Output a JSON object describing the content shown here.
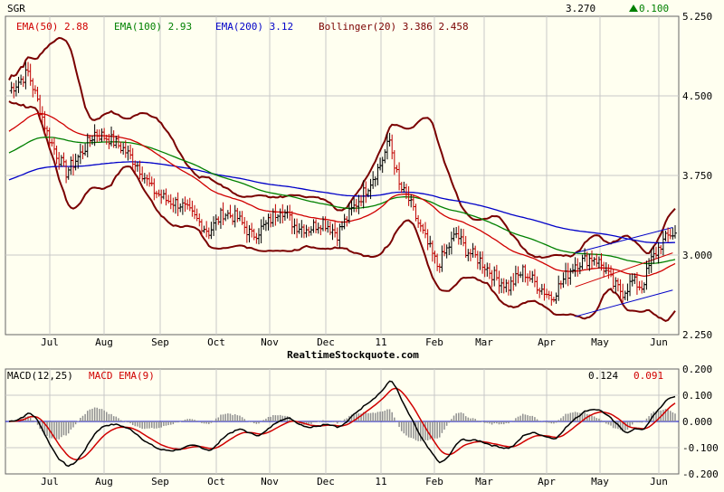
{
  "colors": {
    "background": "#fffff0",
    "panel": "#fffff0",
    "grid": "#c8c8c8",
    "ema50": "#d00000",
    "ema100": "#008000",
    "ema200": "#0000c8",
    "bollinger": "#7a0000",
    "up_bar": "#000000",
    "down_bar": "#c00000",
    "macd": "#000000",
    "signal": "#d00000",
    "hist": "#909090",
    "trend": "#0000c8",
    "change": "#008000"
  },
  "header": {
    "symbol": "SGR",
    "last_price": "3.270",
    "change": "0.100"
  },
  "legend": {
    "ema50": "EMA(50) 2.88",
    "ema100": "EMA(100) 2.93",
    "ema200": "EMA(200) 3.12",
    "bollinger": "Bollinger(20) 3.386 2.458"
  },
  "watermark": "RealtimeStockquote.com",
  "chart_data": [
    {
      "type": "ohlc",
      "title": "SGR",
      "months": [
        "Jul",
        "Aug",
        "Sep",
        "Oct",
        "Nov",
        "Dec",
        "11",
        "Feb",
        "Mar",
        "Apr",
        "May",
        "Jun"
      ],
      "y_ticks": [
        "5.250",
        "4.500",
        "3.750",
        "3.000",
        "2.250"
      ],
      "ylim": [
        2.25,
        5.25
      ],
      "series": [
        {
          "name": "EMA(50)",
          "last": 2.88
        },
        {
          "name": "EMA(100)",
          "last": 2.93
        },
        {
          "name": "EMA(200)",
          "last": 3.12
        },
        {
          "name": "Bollinger(20)",
          "upper": 3.386,
          "lower": 2.458
        }
      ],
      "price_path": [
        [
          0,
          4.55
        ],
        [
          8,
          4.72
        ],
        [
          12,
          4.45
        ],
        [
          16,
          4.15
        ],
        [
          20,
          3.95
        ],
        [
          24,
          3.78
        ],
        [
          30,
          3.95
        ],
        [
          36,
          4.15
        ],
        [
          42,
          4.1
        ],
        [
          48,
          4.0
        ],
        [
          54,
          3.85
        ],
        [
          60,
          3.62
        ],
        [
          66,
          3.52
        ],
        [
          72,
          3.48
        ],
        [
          78,
          3.35
        ],
        [
          84,
          3.22
        ],
        [
          90,
          3.4
        ],
        [
          96,
          3.35
        ],
        [
          102,
          3.18
        ],
        [
          108,
          3.28
        ],
        [
          114,
          3.45
        ],
        [
          120,
          3.28
        ],
        [
          126,
          3.25
        ],
        [
          132,
          3.32
        ],
        [
          138,
          3.2
        ],
        [
          144,
          3.42
        ],
        [
          150,
          3.62
        ],
        [
          156,
          3.85
        ],
        [
          160,
          4.08
        ],
        [
          164,
          3.65
        ],
        [
          168,
          3.52
        ],
        [
          172,
          3.3
        ],
        [
          176,
          3.1
        ],
        [
          180,
          2.9
        ],
        [
          184,
          3.05
        ],
        [
          188,
          3.2
        ],
        [
          192,
          3.05
        ],
        [
          198,
          2.95
        ],
        [
          204,
          2.8
        ],
        [
          210,
          2.7
        ],
        [
          216,
          2.85
        ],
        [
          222,
          2.72
        ],
        [
          228,
          2.6
        ],
        [
          234,
          2.8
        ],
        [
          238,
          2.92
        ],
        [
          242,
          2.95
        ],
        [
          246,
          2.98
        ],
        [
          250,
          2.88
        ],
        [
          254,
          2.72
        ],
        [
          258,
          2.65
        ],
        [
          262,
          2.75
        ],
        [
          266,
          2.7
        ],
        [
          270,
          2.95
        ],
        [
          274,
          3.1
        ],
        [
          278,
          3.2
        ]
      ]
    },
    {
      "type": "line",
      "title": "MACD(12,25)",
      "series": [
        {
          "name": "MACD(12,25)",
          "last": 0.124
        },
        {
          "name": "MACD EMA(9)",
          "last": 0.091
        }
      ],
      "y_ticks": [
        "0.200",
        "0.100",
        "0.000",
        "-0.100",
        "-0.200"
      ],
      "ylim": [
        -0.2,
        0.2
      ]
    }
  ]
}
